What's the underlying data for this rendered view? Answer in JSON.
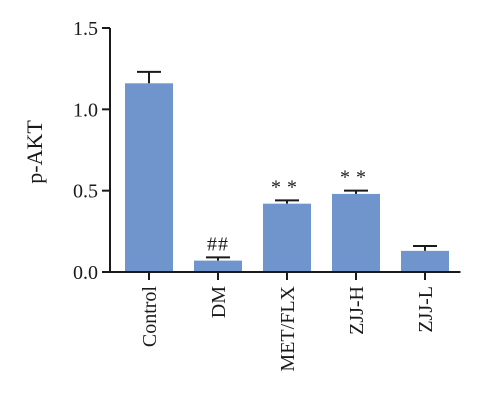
{
  "chart_data": {
    "type": "bar",
    "ylabel": "p-AKT",
    "xlabel": "",
    "title": "",
    "ylim": [
      0,
      1.5
    ],
    "yticks": [
      0.0,
      0.5,
      1.0,
      1.5
    ],
    "ytick_labels": [
      "0.0",
      "0.5",
      "1.0",
      "1.5"
    ],
    "categories": [
      "Control",
      "DM",
      "MET/FLX",
      "ZJJ-H",
      "ZJJ-L"
    ],
    "values": [
      1.16,
      0.07,
      0.42,
      0.48,
      0.13
    ],
    "errors": [
      0.07,
      0.02,
      0.02,
      0.02,
      0.03
    ],
    "annotations": [
      "",
      "##",
      "**",
      "**",
      ""
    ],
    "bar_color": "#7094cc",
    "grid": false
  }
}
